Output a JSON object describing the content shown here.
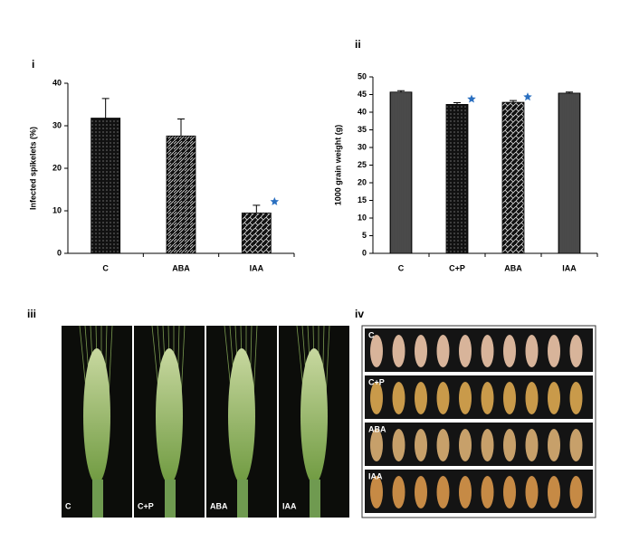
{
  "panels": [
    "i",
    "ii",
    "iii",
    "iv"
  ],
  "photos_iii": [
    "C",
    "C+P",
    "ABA",
    "IAA"
  ],
  "photos_iv": [
    "C",
    "C+P",
    "ABA",
    "IAA"
  ],
  "chart_data": [
    {
      "type": "bar",
      "ylabel": "Infected spikelets (%)",
      "categories": [
        "C",
        "ABA",
        "IAA"
      ],
      "values": [
        31.8,
        27.6,
        9.5
      ],
      "errors": [
        4.6,
        4.0,
        1.8
      ],
      "significant": [
        false,
        false,
        true
      ],
      "star_color": "#2a6fc0",
      "ylim": [
        0,
        40
      ],
      "yticks": [
        0,
        10,
        20,
        30,
        40
      ]
    },
    {
      "type": "bar",
      "ylabel": "1000 grain weight (g)",
      "categories": [
        "C",
        "C+P",
        "ABA",
        "IAA"
      ],
      "values": [
        45.7,
        42.2,
        42.8,
        45.4
      ],
      "errors": [
        0.4,
        0.5,
        0.5,
        0.3
      ],
      "significant": [
        false,
        true,
        true,
        false
      ],
      "star_color": "#2a6fc0",
      "ylim": [
        0,
        50
      ],
      "yticks": [
        0,
        5,
        10,
        15,
        20,
        25,
        30,
        35,
        40,
        45,
        50
      ]
    }
  ]
}
